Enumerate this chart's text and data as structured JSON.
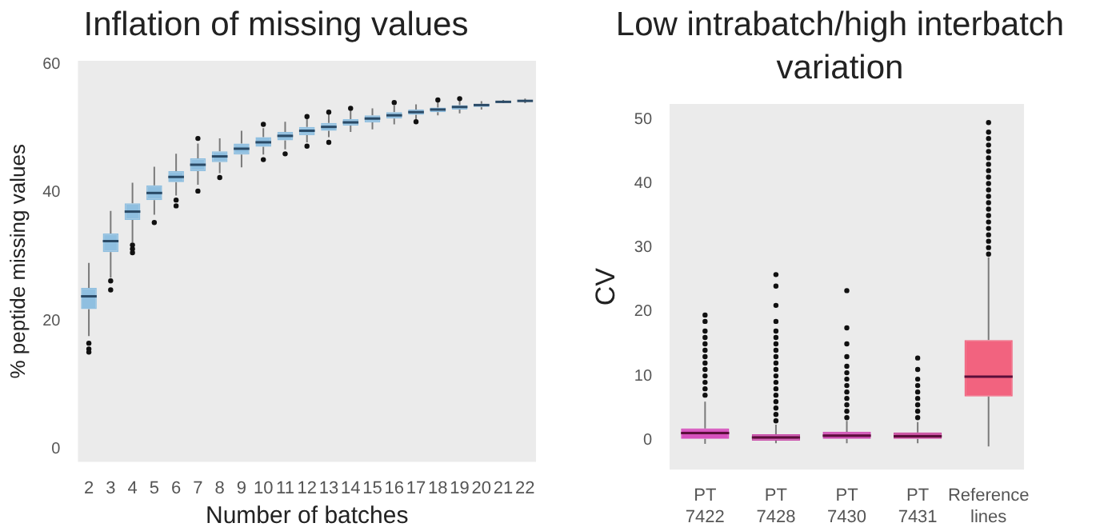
{
  "chart_data": [
    {
      "type": "box",
      "title": "Inflation of missing values",
      "xlabel": "Number of batches",
      "ylabel": "% peptide missing values",
      "categories": [
        "2",
        "3",
        "4",
        "5",
        "6",
        "7",
        "8",
        "9",
        "10",
        "11",
        "12",
        "13",
        "14",
        "15",
        "16",
        "17",
        "18",
        "19",
        "20",
        "21",
        "22"
      ],
      "color": "#8fbfe0",
      "ylim": [
        -2,
        60.5
      ],
      "yticks": [
        0,
        20,
        40,
        60
      ],
      "boxes": [
        {
          "low": 17.6,
          "q1": 21.8,
          "median": 23.8,
          "q3": 25.1,
          "high": 29,
          "outliers": [
            16.5,
            15.6,
            15.1
          ]
        },
        {
          "low": 26.7,
          "q1": 30.7,
          "median": 32.4,
          "q3": 33.6,
          "high": 37.1,
          "outliers": [
            26.2,
            24.8
          ]
        },
        {
          "low": 32.2,
          "q1": 35.7,
          "median": 37,
          "q3": 38.3,
          "high": 41.5,
          "outliers": [
            31.8,
            31.2,
            30.6
          ]
        },
        {
          "low": 36.5,
          "q1": 38.8,
          "median": 39.9,
          "q3": 41.1,
          "high": 44,
          "outliers": [
            35.3
          ]
        },
        {
          "low": 39.5,
          "q1": 41.6,
          "median": 42.4,
          "q3": 43.3,
          "high": 46,
          "outliers": [
            38.8,
            37.9
          ]
        },
        {
          "low": 41.2,
          "q1": 43.3,
          "median": 44.3,
          "q3": 45.3,
          "high": 47.6,
          "outliers": [
            48.4,
            40.2
          ]
        },
        {
          "low": 43,
          "q1": 44.7,
          "median": 45.6,
          "q3": 46.4,
          "high": 48.4,
          "outliers": [
            42.3
          ]
        },
        {
          "low": 43.9,
          "q1": 45.9,
          "median": 46.8,
          "q3": 47.6,
          "high": 49.6
        },
        {
          "low": 45.9,
          "q1": 47.1,
          "median": 47.8,
          "q3": 48.6,
          "high": 50,
          "outliers": [
            50.6,
            45.1
          ]
        },
        {
          "low": 46.7,
          "q1": 48.1,
          "median": 48.8,
          "q3": 49.4,
          "high": 51,
          "outliers": [
            46
          ]
        },
        {
          "low": 47.8,
          "q1": 48.9,
          "median": 49.6,
          "q3": 50.2,
          "high": 51.5,
          "outliers": [
            51.8,
            47.2
          ]
        },
        {
          "low": 48.6,
          "q1": 49.6,
          "median": 50.2,
          "q3": 50.8,
          "high": 52.2,
          "outliers": [
            52.5,
            47.8
          ]
        },
        {
          "low": 49.4,
          "q1": 50.4,
          "median": 50.9,
          "q3": 51.4,
          "high": 52.8,
          "outliers": [
            53.1
          ]
        },
        {
          "low": 49.8,
          "q1": 50.9,
          "median": 51.5,
          "q3": 52,
          "high": 53.1
        },
        {
          "low": 50.6,
          "q1": 51.5,
          "median": 52,
          "q3": 52.5,
          "high": 53.6,
          "outliers": [
            54
          ]
        },
        {
          "low": 51.4,
          "q1": 52.1,
          "median": 52.5,
          "q3": 52.9,
          "high": 53.7,
          "outliers": [
            51
          ]
        },
        {
          "low": 52,
          "q1": 52.5,
          "median": 52.9,
          "q3": 53.2,
          "high": 54.1,
          "outliers": [
            54.4
          ]
        },
        {
          "low": 52.3,
          "q1": 52.9,
          "median": 53.3,
          "q3": 53.6,
          "high": 54.4,
          "outliers": [
            54.6
          ]
        },
        {
          "low": 52.9,
          "q1": 53.3,
          "median": 53.6,
          "q3": 53.8,
          "high": 54.2
        },
        {
          "low": 53.9,
          "q1": 54,
          "median": 54.1,
          "q3": 54.2,
          "high": 54.4
        },
        {
          "low": 53.9,
          "q1": 54.2,
          "median": 54.25,
          "q3": 54.3,
          "high": 54.6
        }
      ]
    },
    {
      "type": "box",
      "title": "Low intrabatch/high interbatch variation",
      "ylabel": "CV",
      "categories": [
        "PT 7422",
        "PT 7428",
        "PT 7430",
        "PT 7431",
        "Reference lines"
      ],
      "colors": [
        "#d651bd",
        "#c94aa8",
        "#d04fb4",
        "#c84b9f",
        "#f2637f"
      ],
      "ylim": [
        -4.6,
        52.4
      ],
      "yticks": [
        0,
        10,
        20,
        30,
        40,
        50
      ],
      "boxes": [
        {
          "low": -0.6,
          "q1": 0.2,
          "median": 1.1,
          "q3": 1.8,
          "high": 6,
          "outliers": [
            7,
            8,
            9,
            10,
            11,
            12,
            13,
            14,
            15,
            16,
            17,
            18.5,
            19.5
          ]
        },
        {
          "low": -0.5,
          "q1": -0.1,
          "median": 0.4,
          "q3": 0.9,
          "high": 2.4,
          "outliers": [
            3,
            4,
            5,
            6,
            7,
            8,
            9,
            10,
            11,
            12,
            13,
            14,
            15,
            16,
            17,
            18.5,
            21,
            24,
            25.8
          ]
        },
        {
          "low": -0.5,
          "q1": 0.2,
          "median": 0.7,
          "q3": 1.3,
          "high": 3,
          "outliers": [
            3.5,
            4.5,
            5.5,
            6.5,
            7.5,
            8.5,
            9.5,
            10.5,
            11.5,
            13,
            15,
            17.5,
            23.3
          ]
        },
        {
          "low": -0.5,
          "q1": 0.2,
          "median": 0.6,
          "q3": 1.2,
          "high": 2.8,
          "outliers": [
            3.5,
            4.5,
            5.5,
            6.5,
            7.5,
            8.5,
            9.5,
            11,
            12.8
          ]
        },
        {
          "low": -1,
          "q1": 6.8,
          "median": 9.9,
          "q3": 15.6,
          "high": 28.5,
          "outliers": [
            29,
            30,
            31,
            32,
            33,
            34,
            35,
            36,
            37,
            38,
            39,
            40,
            41,
            42,
            43,
            44,
            45,
            46,
            47,
            48,
            49.5
          ]
        }
      ]
    }
  ]
}
